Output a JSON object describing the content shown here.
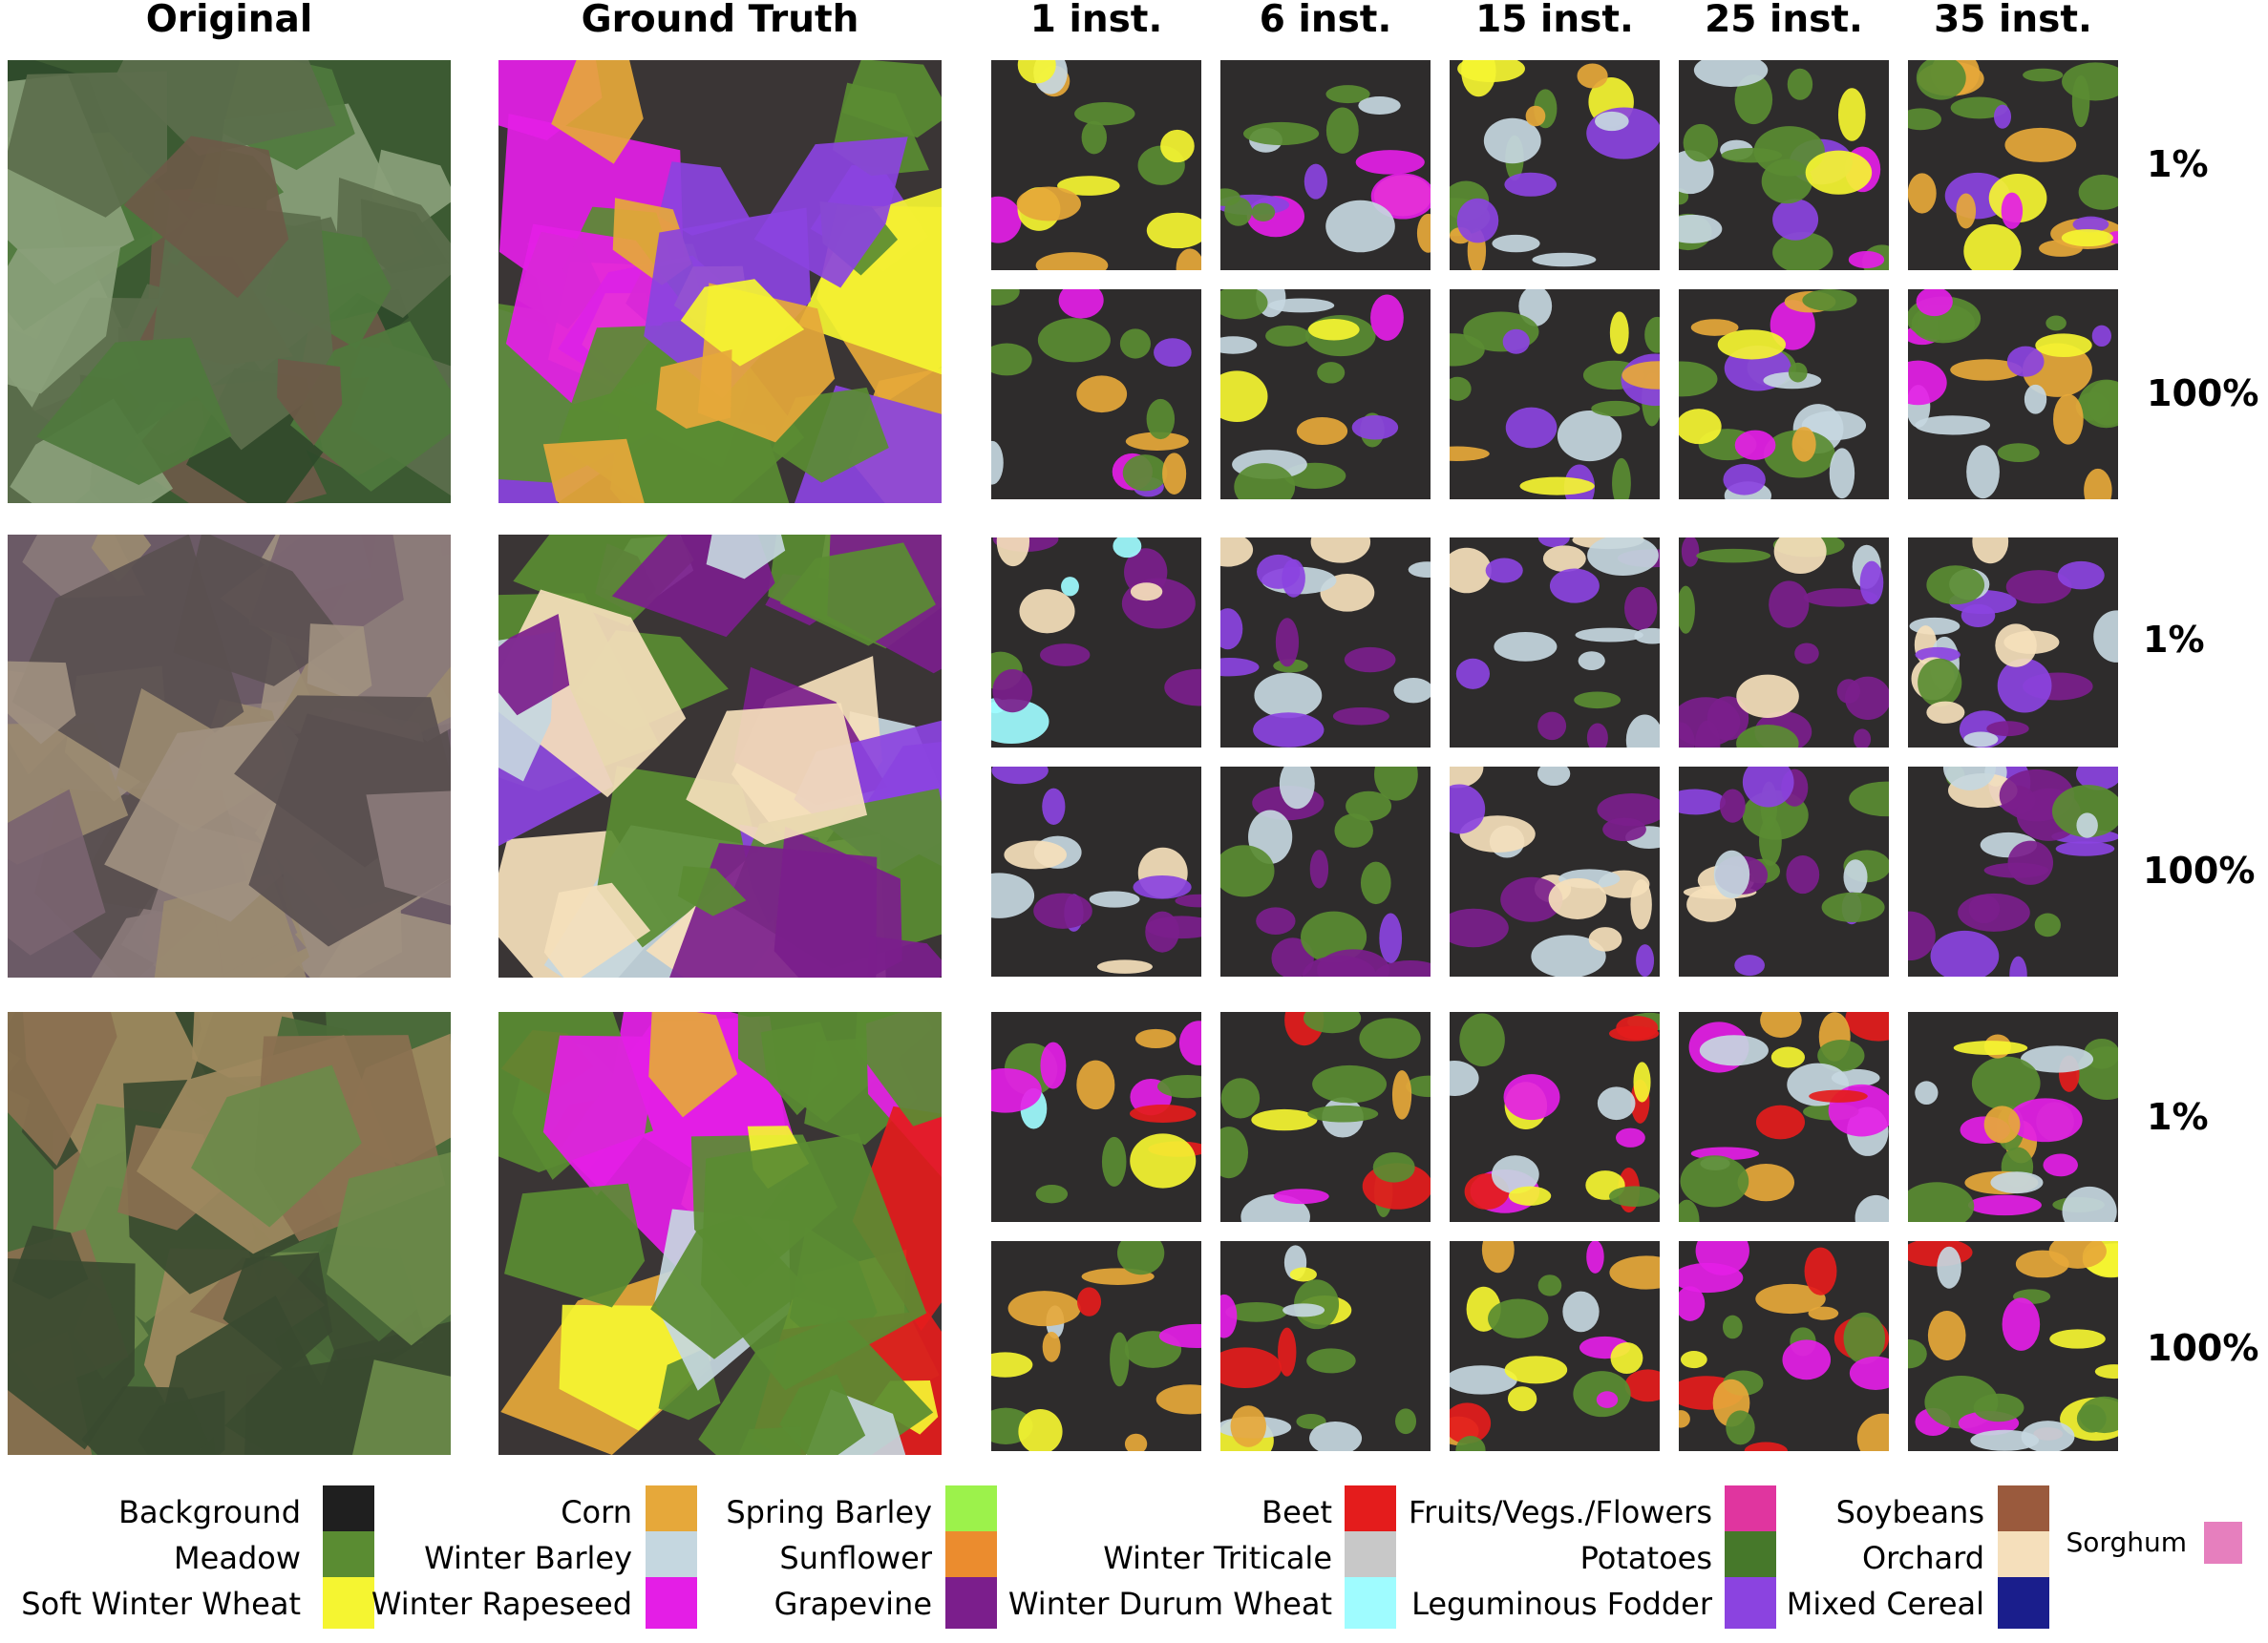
{
  "headers": {
    "original": "Original",
    "ground_truth": "Ground Truth",
    "inst": [
      "1 inst.",
      "6 inst.",
      "15 inst.",
      "25 inst.",
      "35 inst."
    ]
  },
  "row_labels": [
    "1%",
    "100%",
    "1%",
    "100%",
    "1%",
    "100%"
  ],
  "legend": [
    {
      "label": "Background",
      "color": "#1f1f1f"
    },
    {
      "label": "Meadow",
      "color": "#5a8c32"
    },
    {
      "label": "Soft Winter Wheat",
      "color": "#f5f531"
    },
    {
      "label": "Corn",
      "color": "#e6a83a"
    },
    {
      "label": "Winter Barley",
      "color": "#c5d7e0"
    },
    {
      "label": "Winter Rapeseed",
      "color": "#e41ee6"
    },
    {
      "label": "Spring Barley",
      "color": "#9cf24b"
    },
    {
      "label": "Sunflower",
      "color": "#eb8c2e"
    },
    {
      "label": "Grapevine",
      "color": "#7b1e8c"
    },
    {
      "label": "Beet",
      "color": "#e41c1c"
    },
    {
      "label": "Winter Triticale",
      "color": "#c8c8c8"
    },
    {
      "label": "Winter Durum Wheat",
      "color": "#9ffcff"
    },
    {
      "label": "Fruits/Vegs./Flowers",
      "color": "#e0359f"
    },
    {
      "label": "Potatoes",
      "color": "#46782a"
    },
    {
      "label": "Leguminous Fodder",
      "color": "#8b43e0"
    },
    {
      "label": "Soybeans",
      "color": "#9a5a3d"
    },
    {
      "label": "Orchard",
      "color": "#f5dfbb"
    },
    {
      "label": "Mixed Cereal",
      "color": "#1a1e8c"
    },
    {
      "label": "Sorghum",
      "color": "#e67fbe"
    }
  ]
}
